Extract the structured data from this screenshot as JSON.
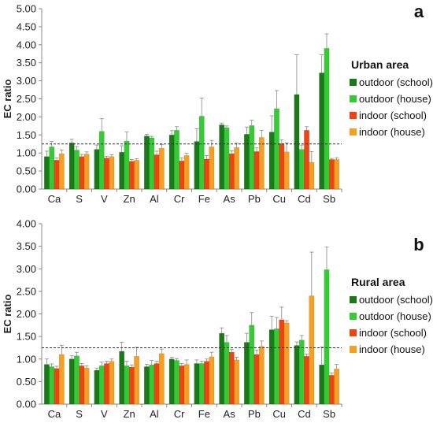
{
  "colors": {
    "outdoor_school": "#1a7a1a",
    "outdoor_house": "#33cc33",
    "indoor_school": "#ee4411",
    "indoor_house": "#f5a020",
    "axis": "#888888",
    "reference_line": "#333333"
  },
  "chart_data": [
    {
      "panel": "a",
      "type": "bar",
      "ylabel": "EC ratio",
      "ylim": [
        0,
        5
      ],
      "ytick_step": 0.5,
      "reference_line": 1.25,
      "legend_title": "Urban area",
      "legend_position": "right",
      "categories": [
        "Ca",
        "S",
        "V",
        "Zn",
        "Al",
        "Cr",
        "Fe",
        "As",
        "Pb",
        "Cu",
        "Cd",
        "Sb"
      ],
      "series": [
        {
          "name": "outdoor (school)",
          "color_key": "outdoor_school",
          "values": [
            0.9,
            1.28,
            1.1,
            1.02,
            1.47,
            1.5,
            1.32,
            1.78,
            1.52,
            1.58,
            2.62,
            3.22
          ],
          "errors": [
            0.15,
            0.1,
            0.12,
            0.18,
            0.05,
            0.12,
            0.35,
            0.05,
            0.2,
            0.45,
            1.1,
            0.5
          ]
        },
        {
          "name": "outdoor (house)",
          "color_key": "outdoor_house",
          "values": [
            1.17,
            1.08,
            1.6,
            1.33,
            1.42,
            1.63,
            2.02,
            1.7,
            1.76,
            2.23,
            1.1,
            3.9
          ]
        },
        {
          "name": "indoor (school)",
          "color_key": "indoor_school",
          "values": [
            0.8,
            0.9,
            0.86,
            0.77,
            0.95,
            0.78,
            0.83,
            0.98,
            1.04,
            1.26,
            1.63,
            0.82
          ]
        },
        {
          "name": "indoor (house)",
          "color_key": "indoor_house",
          "values": [
            0.98,
            0.97,
            0.9,
            0.8,
            1.13,
            0.93,
            1.17,
            1.15,
            1.43,
            1.03,
            0.74,
            0.82
          ]
        }
      ],
      "errors": [
        [
          0.15,
          0.1,
          0.12,
          0.18,
          0.05,
          0.12,
          0.35,
          0.05,
          0.2,
          0.45,
          1.1,
          0.5
        ],
        [
          0.15,
          0.1,
          0.35,
          0.25,
          0.04,
          0.1,
          0.5,
          0.05,
          0.15,
          0.5,
          0.12,
          0.4
        ],
        [
          0.06,
          0.06,
          0.05,
          0.05,
          0.1,
          0.08,
          0.1,
          0.08,
          0.1,
          0.1,
          0.1,
          0.03
        ],
        [
          0.1,
          0.06,
          0.05,
          0.04,
          0.1,
          0.06,
          0.18,
          0.12,
          0.2,
          0.25,
          0.3,
          0.05
        ]
      ]
    },
    {
      "panel": "b",
      "type": "bar",
      "ylabel": "EC ratio",
      "ylim": [
        0,
        4
      ],
      "ytick_step": 0.5,
      "reference_line": 1.25,
      "legend_title": "Rural area",
      "legend_position": "right",
      "categories": [
        "Ca",
        "S",
        "V",
        "Zn",
        "Al",
        "Cr",
        "Fe",
        "As",
        "Pb",
        "Cu",
        "Cd",
        "Sb"
      ],
      "series": [
        {
          "name": "outdoor (school)",
          "color_key": "outdoor_school",
          "values": [
            0.88,
            1.0,
            0.75,
            1.17,
            0.83,
            1.0,
            0.9,
            1.57,
            1.37,
            1.65,
            1.3,
            0.87
          ]
        },
        {
          "name": "outdoor (house)",
          "color_key": "outdoor_house",
          "values": [
            0.83,
            1.07,
            0.85,
            0.85,
            0.87,
            0.97,
            0.9,
            1.37,
            1.75,
            1.67,
            1.42,
            2.98
          ]
        },
        {
          "name": "indoor (school)",
          "color_key": "indoor_school",
          "values": [
            0.79,
            0.85,
            0.9,
            0.82,
            0.9,
            0.85,
            0.95,
            1.15,
            1.1,
            1.87,
            1.06,
            0.64
          ]
        },
        {
          "name": "indoor (house)",
          "color_key": "indoor_house",
          "values": [
            1.1,
            0.8,
            0.95,
            1.06,
            1.12,
            0.88,
            1.05,
            0.98,
            1.28,
            1.8,
            2.4,
            0.78
          ]
        }
      ],
      "errors": [
        [
          0.12,
          0.07,
          0.05,
          0.2,
          0.05,
          0.04,
          0.08,
          0.12,
          0.2,
          0.3,
          0.08,
          0.4
        ],
        [
          0.06,
          0.08,
          0.08,
          0.1,
          0.1,
          0.04,
          0.05,
          0.15,
          0.28,
          0.25,
          0.1,
          0.5
        ],
        [
          0.05,
          0.05,
          0.05,
          0.05,
          0.05,
          0.05,
          0.05,
          0.06,
          0.1,
          0.28,
          0.05,
          0.05
        ],
        [
          0.2,
          0.05,
          0.05,
          0.2,
          0.1,
          0.1,
          0.1,
          0.06,
          0.12,
          0.05,
          0.97,
          0.1
        ]
      ]
    }
  ]
}
